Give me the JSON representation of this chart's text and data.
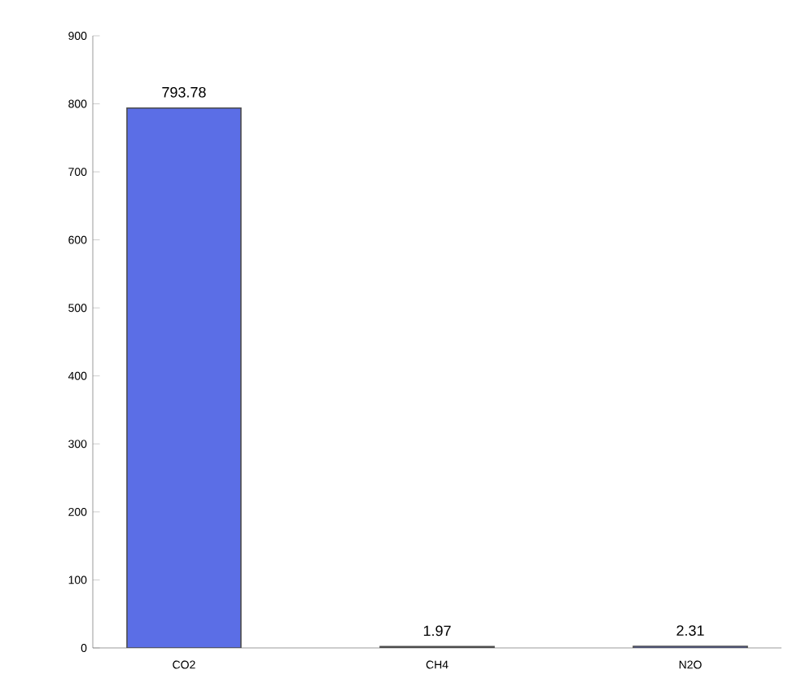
{
  "chart_data": {
    "type": "bar",
    "categories": [
      "CO2",
      "CH4",
      "N2O"
    ],
    "values": [
      793.78,
      1.97,
      2.31
    ],
    "color": "#5b6ee6",
    "ylim": [
      0,
      900
    ],
    "yticks": [
      0,
      100,
      200,
      300,
      400,
      500,
      600,
      700,
      800,
      900
    ],
    "data_labels": true,
    "grid": false
  }
}
